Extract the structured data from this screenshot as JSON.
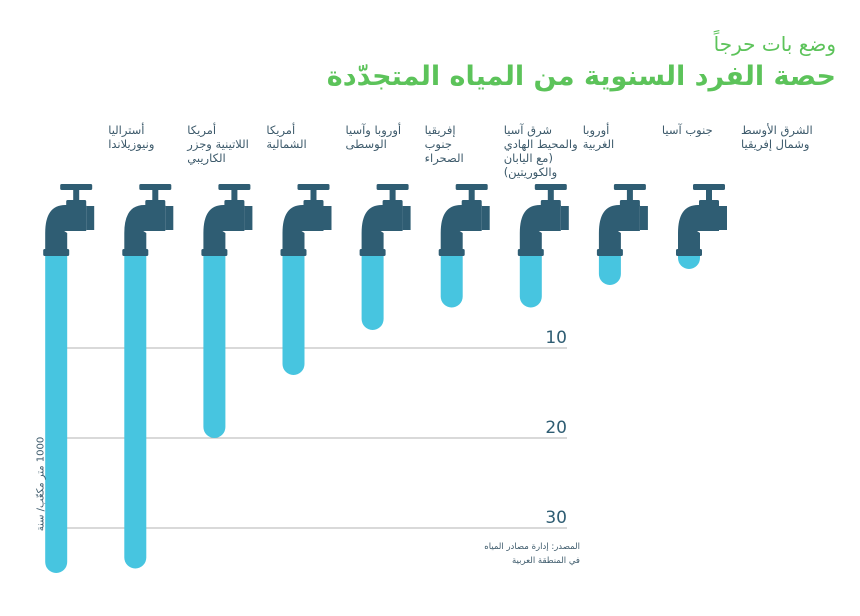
{
  "subtitle": "وضع بات حرجاً",
  "title": "حصة الفرد السنوية من المياه المتجدّدة",
  "source_lines": [
    "المصدر: إدارة مصادر المياه",
    "في المنطقة العربية"
  ],
  "colors": {
    "title": "#5cc35a",
    "faucet": "#2f5d73",
    "water": "#47c5e0",
    "grid": "#9a9a9a"
  },
  "icons": {
    "faucet": "faucet-icon"
  },
  "chart_data": {
    "type": "bar",
    "orientation": "vertical-downward",
    "title": "حصة الفرد السنوية من المياه المتجدّدة",
    "subtitle": "وضع بات حرجاً",
    "ylabel": "1000 متر مكعّب/ سنة",
    "ylim": [
      0,
      35
    ],
    "yticks": [
      10,
      20,
      30
    ],
    "grid": true,
    "categories": [
      {
        "lines": [
          "الشرق الأوسط",
          "وشمال إفريقيا"
        ]
      },
      {
        "lines": [
          "جنوب آسيا"
        ]
      },
      {
        "lines": [
          "أوروبا",
          "الغربية"
        ]
      },
      {
        "lines": [
          "شرق آسيا",
          "والمحيط الهادي",
          "(مع اليابان",
          "والكوريتين)"
        ]
      },
      {
        "lines": [
          "إفريقيا",
          "جنوب",
          "الصحراء"
        ]
      },
      {
        "lines": [
          "أوروبا وآسيا",
          "الوسطى"
        ]
      },
      {
        "lines": [
          "أمريكا",
          "الشمالية"
        ]
      },
      {
        "lines": [
          "أمريكا",
          "اللاتينية وجزر",
          "الكاريبي"
        ]
      },
      {
        "lines": [
          "أستراليا",
          "ونيوزيلاندا"
        ]
      }
    ],
    "values": [
      0.9,
      3.0,
      5.5,
      5.5,
      8.0,
      13.0,
      20.0,
      34.5,
      35.0
    ]
  }
}
